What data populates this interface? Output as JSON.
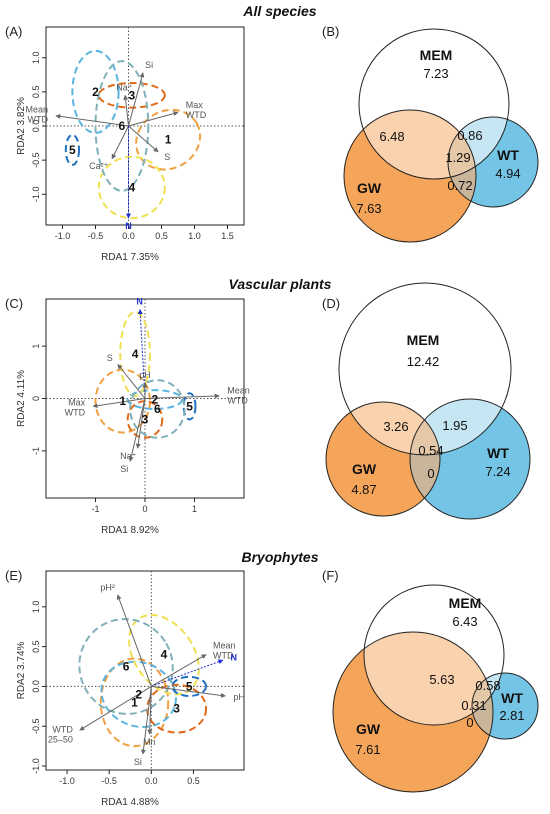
{
  "colors": {
    "gw": "#F5A55A",
    "wt": "#74C4E6",
    "gw_mem": "#FAD3AE",
    "wt_mem": "#C7E6F3",
    "all_three": "#E5C8A8",
    "gw_wt": "#C9B59A",
    "arrow": "#666666",
    "n_arrow": "#1F2FD0",
    "group1": "#F0A040",
    "group2": "#5AB5E0",
    "group3": "#E06A1A",
    "group4": "#F0E050",
    "group5": "#2070C0",
    "group6": "#80B0B8"
  },
  "sections": [
    {
      "title": "All species"
    },
    {
      "title": "Vascular plants"
    },
    {
      "title": "Bryophytes"
    }
  ],
  "chart_data": [
    {
      "panel": "(A)",
      "type": "scatter",
      "xlabel": "RDA1 7.35%",
      "ylabel": "RDA2 3.82%",
      "xlim": [
        -1.25,
        1.75
      ],
      "ylim": [
        -1.45,
        1.45
      ],
      "xticks": [
        -1.0,
        -0.5,
        0.0,
        0.5,
        1.0,
        1.5
      ],
      "yticks": [
        -1.0,
        -0.5,
        0.0,
        0.5,
        1.0
      ],
      "arrows": [
        {
          "label": "Si",
          "x": 0.22,
          "y": 0.78
        },
        {
          "label": "Na⁺",
          "x": -0.05,
          "y": 0.45
        },
        {
          "label": "Mean WTD",
          "x": -1.1,
          "y": 0.15
        },
        {
          "label": "Max WTD",
          "x": 0.75,
          "y": 0.2
        },
        {
          "label": "Ca²⁺",
          "x": -0.25,
          "y": -0.48
        },
        {
          "label": "S",
          "x": 0.45,
          "y": -0.38
        },
        {
          "label": "N",
          "x": 0.0,
          "y": -1.35,
          "color": "n_arrow"
        }
      ],
      "groups": [
        {
          "label": "1",
          "x": 0.6,
          "y": -0.2,
          "ellipse": {
            "rx": 0.5,
            "ry": 0.42,
            "angle": 30
          }
        },
        {
          "label": "2",
          "x": -0.5,
          "y": 0.5,
          "ellipse": {
            "rx": 0.35,
            "ry": 0.6,
            "angle": 0
          }
        },
        {
          "label": "3",
          "x": 0.05,
          "y": 0.45,
          "ellipse": {
            "rx": 0.5,
            "ry": 0.18,
            "angle": 0
          }
        },
        {
          "label": "4",
          "x": 0.05,
          "y": -0.9,
          "ellipse": {
            "rx": 0.5,
            "ry": 0.45,
            "angle": 0
          }
        },
        {
          "label": "5",
          "x": -0.85,
          "y": -0.35,
          "ellipse": {
            "rx": 0.1,
            "ry": 0.22,
            "angle": 0
          }
        },
        {
          "label": "6",
          "x": -0.1,
          "y": 0.0,
          "ellipse": {
            "rx": 0.4,
            "ry": 0.95,
            "angle": 0
          }
        }
      ]
    },
    {
      "panel": "(C)",
      "type": "scatter",
      "xlabel": "RDA1 8.92%",
      "ylabel": "RDA2 4.11%",
      "xlim": [
        -2.0,
        2.0
      ],
      "ylim": [
        -1.9,
        1.9
      ],
      "xticks": [
        -1,
        0,
        1
      ],
      "yticks": [
        -1,
        0,
        1
      ],
      "arrows": [
        {
          "label": "N",
          "x": -0.1,
          "y": 1.7,
          "color": "n_arrow"
        },
        {
          "label": "S",
          "x": -0.55,
          "y": 0.65
        },
        {
          "label": "pH",
          "x": 0.0,
          "y": 0.3
        },
        {
          "label": "Mean WTD",
          "x": 1.5,
          "y": 0.05
        },
        {
          "label": "Max WTD",
          "x": -1.05,
          "y": -0.15
        },
        {
          "label": "Na⁺",
          "x": -0.15,
          "y": -0.95
        },
        {
          "label": "Si",
          "x": -0.3,
          "y": -1.2
        }
      ],
      "groups": [
        {
          "label": "1",
          "x": -0.45,
          "y": -0.05,
          "ellipse": {
            "rx": 0.55,
            "ry": 0.6,
            "angle": 0
          }
        },
        {
          "label": "2",
          "x": 0.2,
          "y": -0.02,
          "ellipse": {
            "rx": 0.55,
            "ry": 0.18,
            "angle": 0
          }
        },
        {
          "label": "3",
          "x": 0.0,
          "y": -0.4,
          "ellipse": {
            "rx": 0.35,
            "ry": 0.35,
            "angle": 0
          }
        },
        {
          "label": "4",
          "x": -0.2,
          "y": 0.85,
          "ellipse": {
            "rx": 0.3,
            "ry": 0.8,
            "angle": 0
          }
        },
        {
          "label": "5",
          "x": 0.9,
          "y": -0.15,
          "ellipse": {
            "rx": 0.12,
            "ry": 0.25,
            "angle": 0
          }
        },
        {
          "label": "6",
          "x": 0.25,
          "y": -0.2,
          "ellipse": {
            "rx": 0.55,
            "ry": 0.55,
            "angle": 0
          }
        }
      ]
    },
    {
      "panel": "(E)",
      "type": "scatter",
      "xlabel": "RDA1 4.88%",
      "ylabel": "RDA2 3.74%",
      "xlim": [
        -1.25,
        1.1
      ],
      "ylim": [
        -1.05,
        1.45
      ],
      "xticks": [
        -1.0,
        -0.5,
        0.0,
        0.5
      ],
      "yticks": [
        -1.0,
        -0.5,
        0.0,
        0.5,
        1.0
      ],
      "arrows": [
        {
          "label": "pH²",
          "x": -0.4,
          "y": 1.15
        },
        {
          "label": "Mean WTD",
          "x": 0.65,
          "y": 0.4
        },
        {
          "label": "N",
          "x": 0.85,
          "y": 0.33,
          "color": "n_arrow"
        },
        {
          "label": "pH",
          "x": 0.88,
          "y": -0.12
        },
        {
          "label": "WTD 25–50",
          "x": -0.85,
          "y": -0.55
        },
        {
          "label": "Mn",
          "x": -0.02,
          "y": -0.6
        },
        {
          "label": "Si",
          "x": -0.1,
          "y": -0.85
        }
      ],
      "groups": [
        {
          "label": "1",
          "x": -0.2,
          "y": -0.2,
          "ellipse": {
            "rx": 0.4,
            "ry": 0.55,
            "angle": 0
          }
        },
        {
          "label": "2",
          "x": -0.15,
          "y": -0.1,
          "ellipse": {
            "rx": 0.45,
            "ry": 0.4,
            "angle": -20
          }
        },
        {
          "label": "3",
          "x": 0.3,
          "y": -0.28,
          "ellipse": {
            "rx": 0.35,
            "ry": 0.3,
            "angle": 0
          }
        },
        {
          "label": "4",
          "x": 0.15,
          "y": 0.4,
          "ellipse": {
            "rx": 0.35,
            "ry": 0.55,
            "angle": 35
          }
        },
        {
          "label": "5",
          "x": 0.45,
          "y": 0.0,
          "ellipse": {
            "rx": 0.2,
            "ry": 0.12,
            "angle": 0
          }
        },
        {
          "label": "6",
          "x": -0.3,
          "y": 0.25,
          "ellipse": {
            "rx": 0.55,
            "ry": 0.6,
            "angle": 30
          }
        }
      ]
    },
    {
      "panel": "(B)",
      "type": "venn",
      "sets": {
        "mem": "MEM",
        "gw": "GW",
        "wt": "WT"
      },
      "values": {
        "mem": "7.23",
        "gw": "7.63",
        "wt": "4.94",
        "gw_mem": "6.48",
        "wt_mem": "0.86",
        "all": "1.29",
        "gw_wt": "0.72"
      }
    },
    {
      "panel": "(D)",
      "type": "venn",
      "sets": {
        "mem": "MEM",
        "gw": "GW",
        "wt": "WT"
      },
      "values": {
        "mem": "12.42",
        "gw": "4.87",
        "wt": "7.24",
        "gw_mem": "3.26",
        "wt_mem": "1.95",
        "all": "0.54",
        "gw_wt": "0"
      }
    },
    {
      "panel": "(F)",
      "type": "venn",
      "sets": {
        "mem": "MEM",
        "gw": "GW",
        "wt": "WT"
      },
      "values": {
        "mem": "6.43",
        "gw": "7.61",
        "wt": "2.81",
        "gw_mem": "5.63",
        "wt_mem": "0.58",
        "all": "0.31",
        "gw_wt": "0"
      }
    }
  ]
}
